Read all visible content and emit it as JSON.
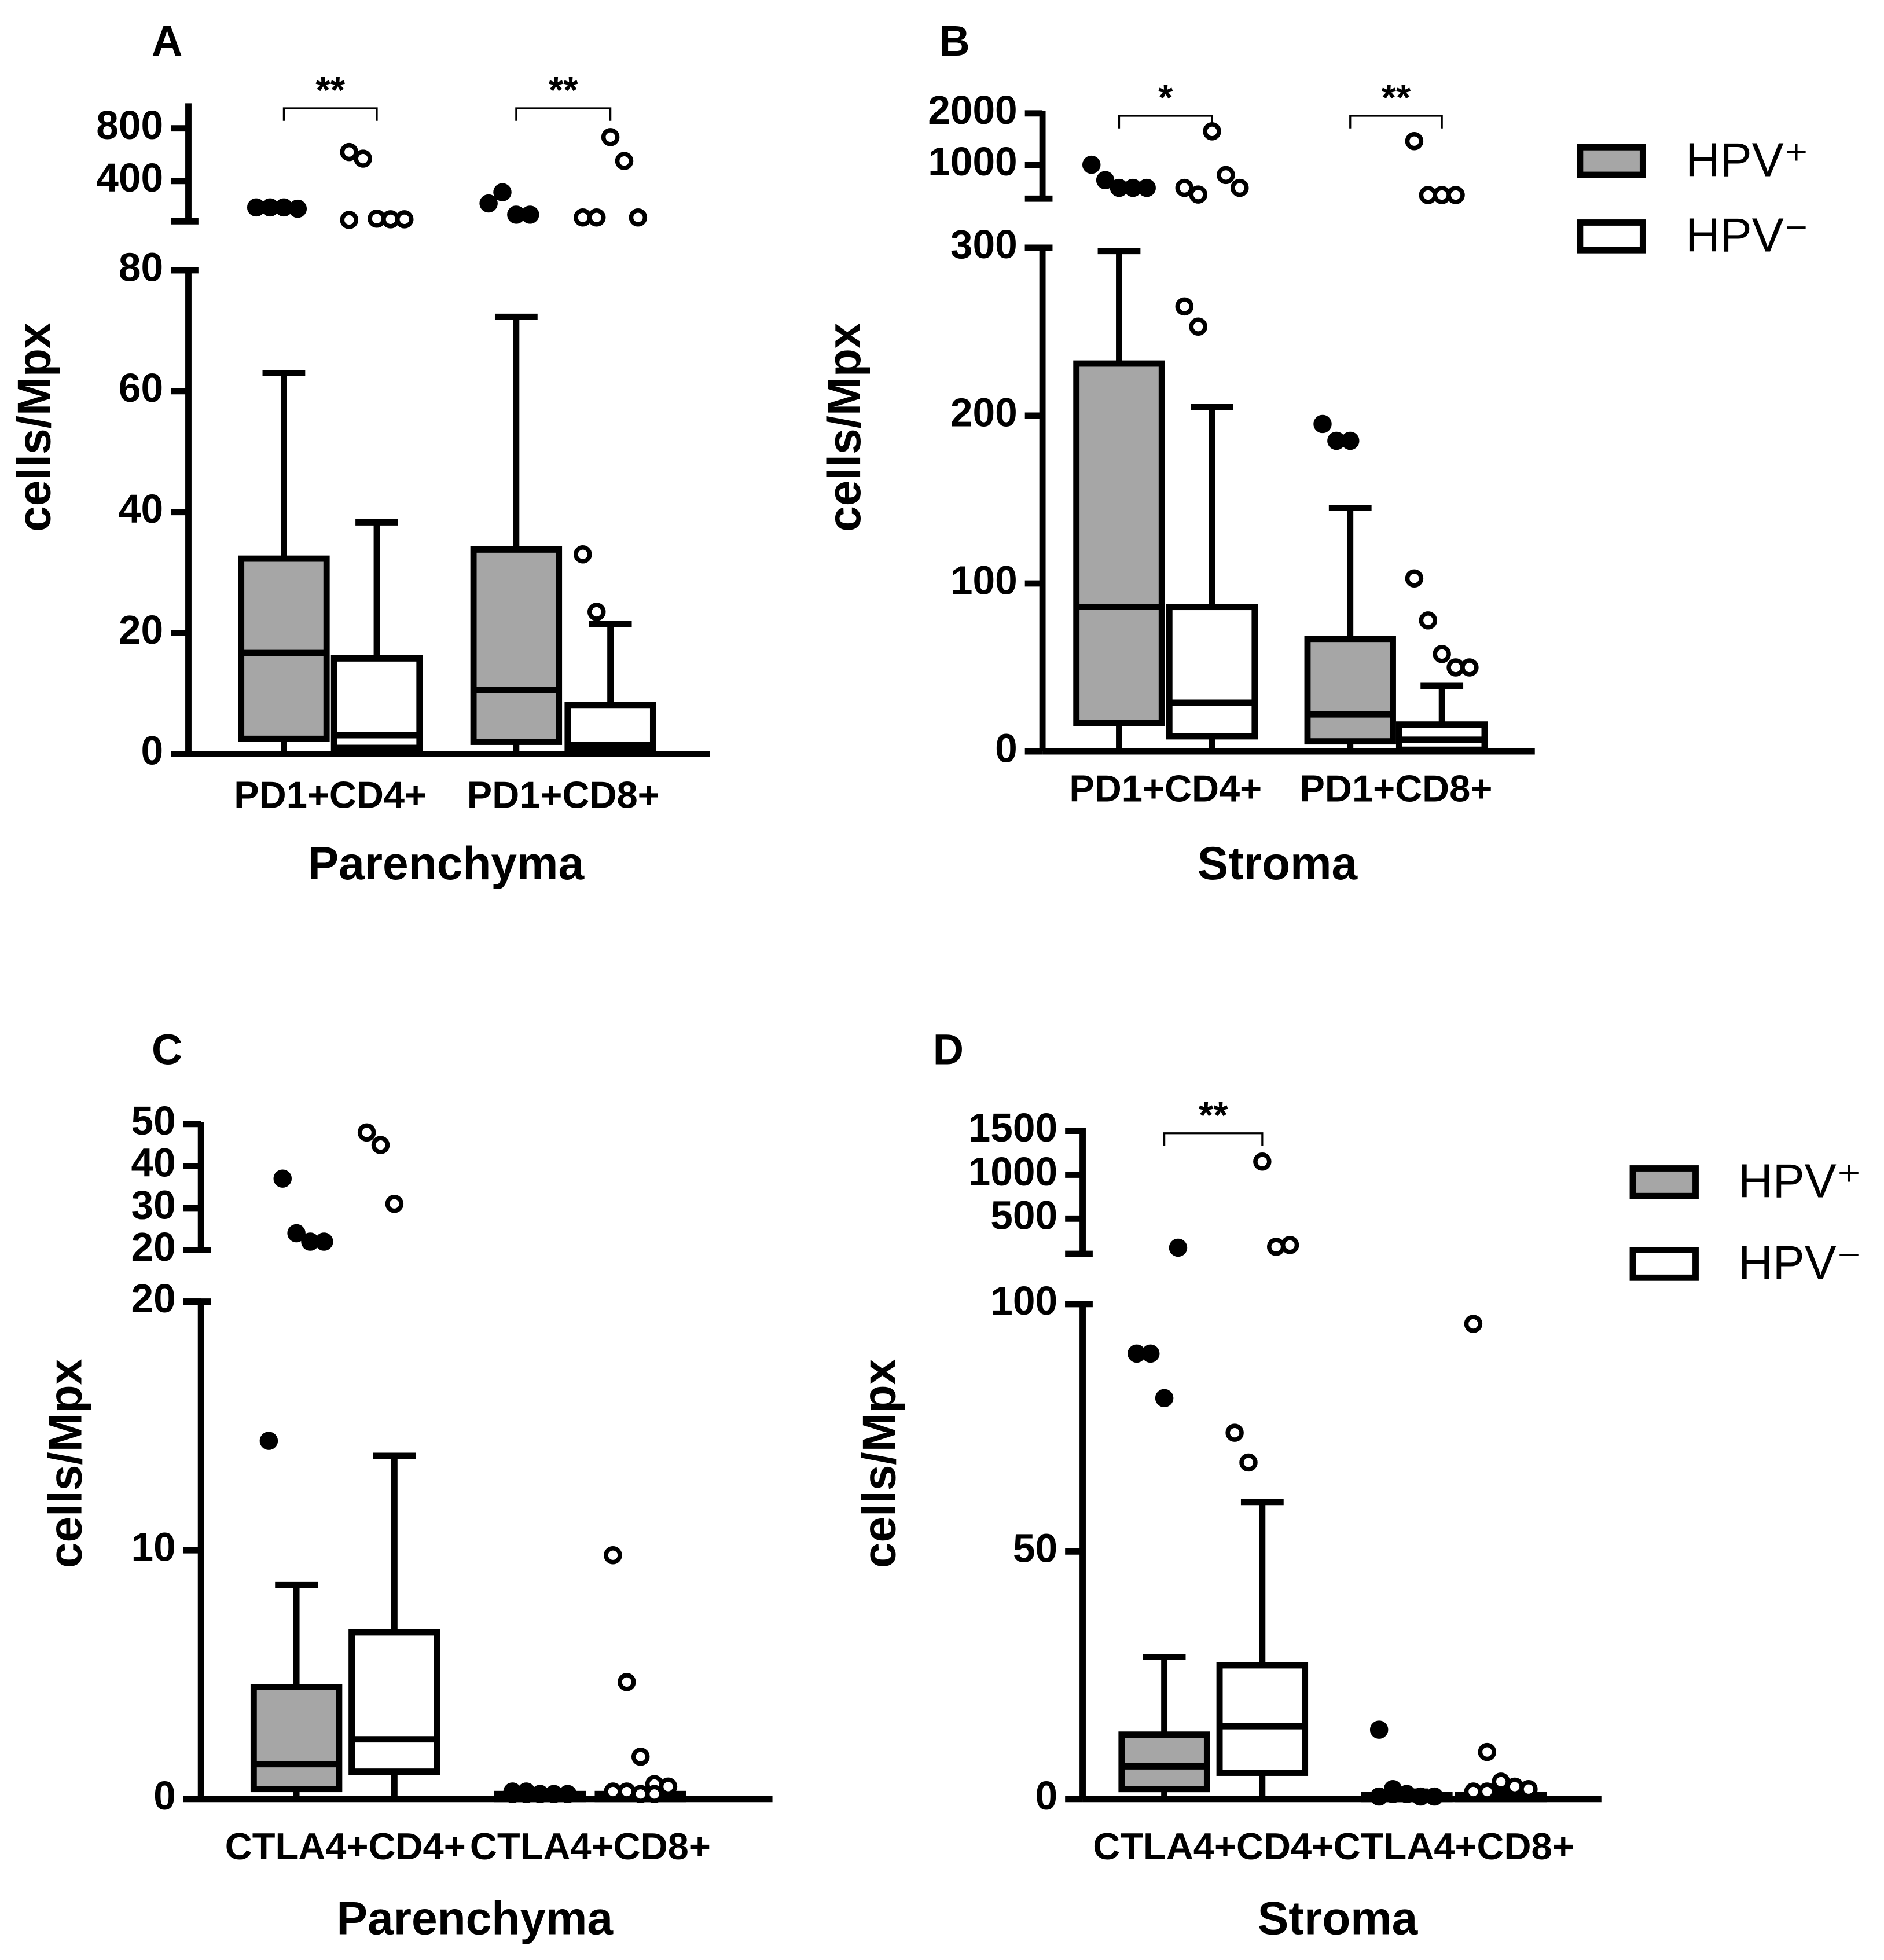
{
  "chart_data": [
    {
      "type": "box",
      "panel": "A",
      "ylabel": "cells/Mpx",
      "xlabel": "Parenchyma",
      "categories": [
        "PD1+CD4+",
        "PD1+CD8+"
      ],
      "significance": [
        "**",
        "**"
      ],
      "ylim": [
        0,
        80
      ],
      "yticks": [
        0,
        20,
        40,
        60,
        80
      ],
      "ylim_upper": [
        95,
        990
      ],
      "yticks_upper": [
        400,
        800
      ],
      "series": [
        {
          "color": "#a6a6a6",
          "marker": "filled",
          "min": [
            0,
            0
          ],
          "q1": [
            2.5,
            2
          ],
          "median": [
            16.7,
            10.6
          ],
          "q3": [
            32.3,
            33.8
          ],
          "max": [
            63,
            72.3
          ],
          "outliers": [
            [
              200,
              200,
              200,
              190
            ],
            [
              230,
              315,
              145,
              145
            ]
          ]
        },
        {
          "color": "#ffffff",
          "marker": "open",
          "min": [
            0,
            0
          ],
          "q1": [
            1,
            0.6
          ],
          "median": [
            3.1,
            1.5
          ],
          "q3": [
            15.8,
            8.1
          ],
          "max": [
            38.3,
            21.5
          ],
          "outliers": [
            [
              620,
              570,
              115,
              110,
              110,
              105
            ],
            [
              33,
              23.5,
              733,
              552,
              124,
              124,
              124
            ]
          ]
        }
      ]
    },
    {
      "type": "box",
      "panel": "B",
      "ylabel": "cells/Mpx",
      "xlabel": "Stroma",
      "categories": [
        "PD1+CD4+",
        "PD1+CD8+"
      ],
      "significance": [
        "*",
        "**"
      ],
      "ylim": [
        0,
        300
      ],
      "yticks": [
        0,
        100,
        200,
        300
      ],
      "ylim_upper": [
        340,
        2050
      ],
      "yticks_upper": [
        1000,
        2000
      ],
      "legend": "right",
      "series": [
        {
          "name": "HPV⁺",
          "color": "#a6a6a6",
          "marker": "filled",
          "min": [
            2,
            0
          ],
          "q1": [
            17,
            6
          ],
          "median": [
            86,
            22
          ],
          "q3": [
            231,
            67
          ],
          "max": [
            298,
            145
          ],
          "outliers": [
            [
              1000,
              700,
              550,
              550,
              550
            ],
            [
              195,
              185,
              185
            ]
          ]
        },
        {
          "name": "HPV⁻",
          "color": "#ffffff",
          "marker": "open",
          "min": [
            2,
            0
          ],
          "q1": [
            9,
            1
          ],
          "median": [
            29,
            7
          ],
          "q3": [
            86,
            16
          ],
          "max": [
            205,
            39
          ],
          "outliers": [
            [
              265,
              253,
              1650,
              800,
              550,
              550,
              420
            ],
            [
              103,
              78,
              58,
              50,
              50,
              1460,
              410,
              410,
              410
            ]
          ]
        }
      ]
    },
    {
      "type": "box",
      "panel": "C",
      "ylabel": "cells/Mpx",
      "xlabel": "Parenchyma",
      "categories": [
        "CTLA4+CD4+",
        "CTLA4+CD8+"
      ],
      "significance": [
        null,
        null
      ],
      "ylim": [
        0,
        20
      ],
      "yticks": [
        0,
        10,
        20
      ],
      "ylim_upper": [
        20,
        50.5
      ],
      "yticks_upper": [
        20,
        30,
        40,
        50
      ],
      "series": [
        {
          "color": "#a6a6a6",
          "marker": "filled",
          "min": [
            0,
            0
          ],
          "q1": [
            0.4,
            0
          ],
          "median": [
            1.4,
            0.1
          ],
          "q3": [
            4.5,
            0.2
          ],
          "max": [
            8.6,
            0.3
          ],
          "outliers": [
            [
              14.4,
              37,
              24,
              22,
              22
            ],
            [
              0.3,
              0.3,
              0.2,
              0.2,
              0.2,
              0.2,
              0.2,
              0.2
            ]
          ]
        },
        {
          "color": "#ffffff",
          "marker": "open",
          "min": [
            0,
            0
          ],
          "q1": [
            1.1,
            0
          ],
          "median": [
            2.4,
            0.1
          ],
          "q3": [
            6.7,
            0.2
          ],
          "max": [
            13.8,
            0.3
          ],
          "outliers": [
            [
              48,
              45,
              31
            ],
            [
              9.8,
              4.7,
              1.7,
              0.6,
              0.5,
              0.3,
              0.3,
              0.2,
              0.2
            ]
          ]
        }
      ]
    },
    {
      "type": "box",
      "panel": "D",
      "ylabel": "cells/Mpx",
      "xlabel": "Stroma",
      "categories": [
        "CTLA4+CD4+",
        "CTLA4+CD8+"
      ],
      "significance": [
        "**",
        null
      ],
      "ylim": [
        0,
        100
      ],
      "yticks": [
        0,
        50,
        100
      ],
      "ylim_upper": [
        100,
        1530
      ],
      "yticks_upper": [
        500,
        1000,
        1500
      ],
      "legend": "right",
      "series": [
        {
          "name": "HPV⁺",
          "color": "#a6a6a6",
          "marker": "filled",
          "min": [
            0,
            0
          ],
          "q1": [
            2,
            0
          ],
          "median": [
            6.6,
            0.3
          ],
          "q3": [
            13,
            0.8
          ],
          "max": [
            28.7,
            1.5
          ],
          "outliers": [
            [
              90,
              90,
              81,
              170
            ],
            [
              14,
              2,
              1,
              0.5,
              0.5,
              0.5,
              1
            ]
          ]
        },
        {
          "name": "HPV⁻",
          "color": "#ffffff",
          "marker": "open",
          "min": [
            0,
            0
          ],
          "q1": [
            5.3,
            0
          ],
          "median": [
            14.7,
            0.3
          ],
          "q3": [
            27,
            0.8
          ],
          "max": [
            60,
            1.5
          ],
          "outliers": [
            [
              74,
              68,
              1150,
              180,
              200
            ],
            [
              96,
              9.5,
              3.5,
              2.5,
              2,
              1.5,
              1.5
            ]
          ]
        }
      ]
    }
  ]
}
